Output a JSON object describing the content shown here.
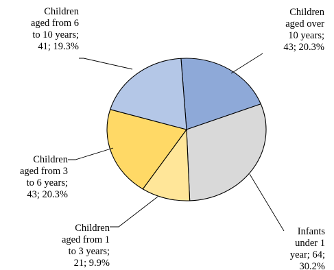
{
  "chart_data": {
    "type": "pie",
    "title": "",
    "slices": [
      {
        "name": "Children aged over 10 years",
        "value": 43,
        "percent": "20.3%",
        "color": "#8EA9D8",
        "label_lines": [
          "Children",
          "aged over",
          "10 years;",
          "43; 20.3%"
        ]
      },
      {
        "name": "Infants under 1 year",
        "value": 64,
        "percent": "30.2%",
        "color": "#D9D9D9",
        "label_lines": [
          "Infants",
          "under 1",
          "year; 64;",
          "30.2%"
        ]
      },
      {
        "name": "Children aged from 1 to 3 years",
        "value": 21,
        "percent": "9.9%",
        "color": "#FFE699",
        "label_lines": [
          "Children",
          "aged from 1",
          "to 3 years;",
          "21; 9.9%"
        ]
      },
      {
        "name": "Children aged from 3 to 6 years",
        "value": 43,
        "percent": "20.3%",
        "color": "#FFD966",
        "label_lines": [
          "Children",
          "aged from 3",
          "to 6 years;",
          "43; 20.3%"
        ]
      },
      {
        "name": "Children aged from 6 to 10 years",
        "value": 41,
        "percent": "19.3%",
        "color": "#B4C7E7",
        "label_lines": [
          "Children",
          "aged from 6",
          "to 10 years;",
          "41; 19.3%"
        ]
      }
    ]
  }
}
